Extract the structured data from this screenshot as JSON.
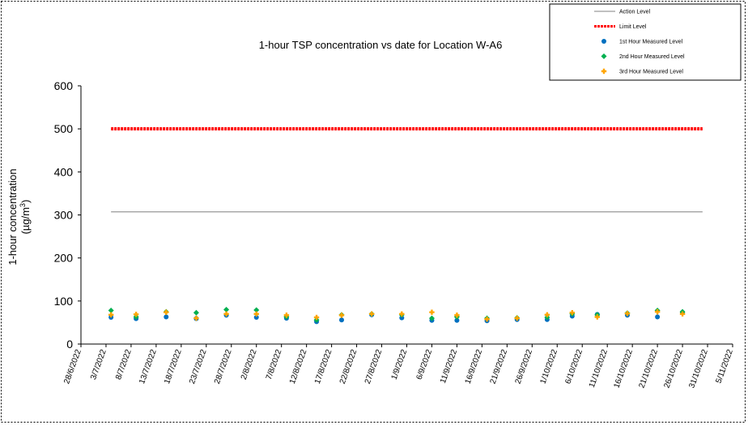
{
  "chart_data": {
    "type": "scatter",
    "title": "1-hour TSP concentration vs date for Location  W-A6",
    "ylabel_main": "1-hour concentration",
    "ylabel_unit_prefix": "(µg/m",
    "ylabel_unit_sup": "3",
    "ylabel_unit_suffix": ")",
    "ylim": [
      0,
      600
    ],
    "yticks": [
      0,
      100,
      200,
      300,
      400,
      500,
      600
    ],
    "xlim": [
      "28/6/2022",
      "5/11/2022"
    ],
    "xticks": [
      "28/6/2022",
      "3/7/2022",
      "8/7/2022",
      "13/7/2022",
      "18/7/2022",
      "23/7/2022",
      "28/7/2022",
      "2/8/2022",
      "7/8/2022",
      "12/8/2022",
      "17/8/2022",
      "22/8/2022",
      "27/8/2022",
      "1/9/2022",
      "6/9/2022",
      "11/9/2022",
      "16/9/2022",
      "21/9/2022",
      "26/9/2022",
      "1/10/2022",
      "6/10/2022",
      "11/10/2022",
      "16/10/2022",
      "21/10/2022",
      "26/10/2022",
      "31/10/2022",
      "5/11/2022"
    ],
    "legend_position": "top-right",
    "grid": false,
    "series": [
      {
        "name": "Action Level",
        "style": "line",
        "color": "#808080",
        "x": [
          "4/7/2022",
          "30/10/2022"
        ],
        "y": [
          307,
          307
        ]
      },
      {
        "name": "Limit Level",
        "style": "line",
        "color": "#ff0000",
        "x": [
          "4/7/2022",
          "30/10/2022"
        ],
        "y": [
          500,
          500
        ]
      },
      {
        "name": "1st Hour Measured Level",
        "style": "marker",
        "marker": "circle",
        "color": "#0070c0",
        "x": [
          "4/7/2022",
          "9/7/2022",
          "15/7/2022",
          "21/7/2022",
          "27/7/2022",
          "2/8/2022",
          "8/8/2022",
          "14/8/2022",
          "19/8/2022",
          "25/8/2022",
          "31/8/2022",
          "6/9/2022",
          "11/9/2022",
          "17/9/2022",
          "23/9/2022",
          "29/9/2022",
          "4/10/2022",
          "9/10/2022",
          "15/10/2022",
          "21/10/2022",
          "26/10/2022"
        ],
        "y": [
          62,
          59,
          63,
          59,
          67,
          62,
          60,
          52,
          56,
          68,
          61,
          55,
          55,
          54,
          57,
          57,
          65,
          69,
          67,
          63,
          73
        ]
      },
      {
        "name": "2nd Hour Measured Level",
        "style": "marker",
        "marker": "diamond",
        "color": "#00b050",
        "x": [
          "4/7/2022",
          "9/7/2022",
          "15/7/2022",
          "21/7/2022",
          "27/7/2022",
          "2/8/2022",
          "8/8/2022",
          "14/8/2022",
          "19/8/2022",
          "25/8/2022",
          "31/8/2022",
          "6/9/2022",
          "11/9/2022",
          "17/9/2022",
          "23/9/2022",
          "29/9/2022",
          "4/10/2022",
          "9/10/2022",
          "15/10/2022",
          "21/10/2022",
          "26/10/2022"
        ],
        "y": [
          78,
          63,
          75,
          73,
          80,
          79,
          63,
          56,
          68,
          70,
          68,
          60,
          63,
          60,
          61,
          62,
          70,
          68,
          72,
          78,
          75
        ]
      },
      {
        "name": "3rd Hour Measured Level",
        "style": "marker",
        "marker": "star",
        "color": "#ffa500",
        "x": [
          "4/7/2022",
          "9/7/2022",
          "15/7/2022",
          "21/7/2022",
          "27/7/2022",
          "2/8/2022",
          "8/8/2022",
          "14/8/2022",
          "19/8/2022",
          "25/8/2022",
          "31/8/2022",
          "6/9/2022",
          "11/9/2022",
          "17/9/2022",
          "23/9/2022",
          "29/9/2022",
          "4/10/2022",
          "9/10/2022",
          "15/10/2022",
          "21/10/2022",
          "26/10/2022"
        ],
        "y": [
          68,
          69,
          74,
          60,
          70,
          70,
          67,
          62,
          67,
          70,
          70,
          74,
          67,
          58,
          60,
          68,
          73,
          63,
          71,
          75,
          70
        ]
      }
    ]
  }
}
